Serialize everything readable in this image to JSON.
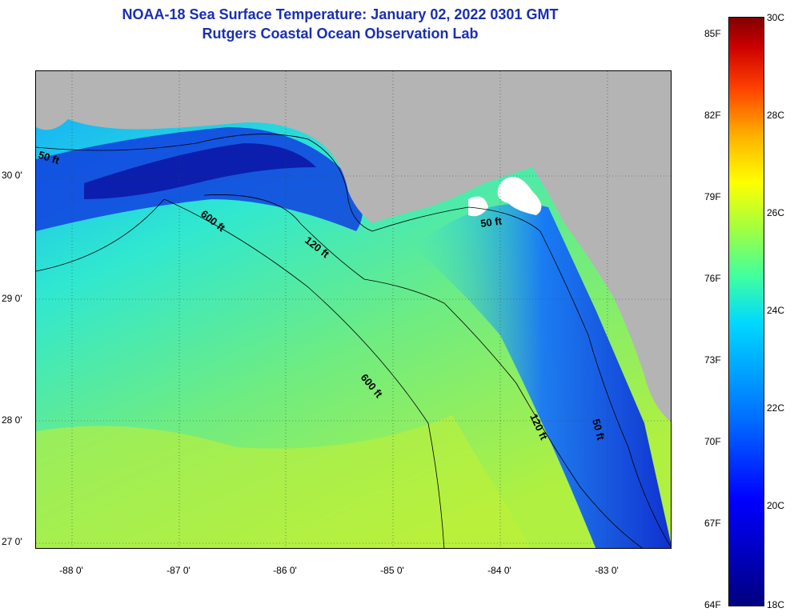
{
  "title": {
    "line1": "NOAA-18 Sea Surface Temperature:  January 02, 2022 0301 GMT",
    "line2": "Rutgers Coastal Ocean Observation Lab"
  },
  "map": {
    "lon_labels": [
      "-88 0'",
      "-87 0'",
      "-86 0'",
      "-85 0'",
      "-84 0'",
      "-83 0'"
    ],
    "lat_labels": [
      "30 0'",
      "29 0'",
      "28 0'",
      "27 0'"
    ],
    "contour_labels": [
      "50 ft",
      "600 ft",
      "120 ft",
      "50 ft",
      "600 ft",
      "120 ft",
      "50 ft"
    ],
    "colors": {
      "land": "#b4b4b4",
      "warm_water": "#90e860",
      "cool_water": "#2060f0",
      "cold_water": "#1010c0"
    }
  },
  "colorbar": {
    "fahrenheit_labels": [
      "85F",
      "82F",
      "79F",
      "76F",
      "73F",
      "70F",
      "67F",
      "64F"
    ],
    "celsius_labels": [
      "30C",
      "28C",
      "26C",
      "24C",
      "22C",
      "20C",
      "18C"
    ]
  }
}
